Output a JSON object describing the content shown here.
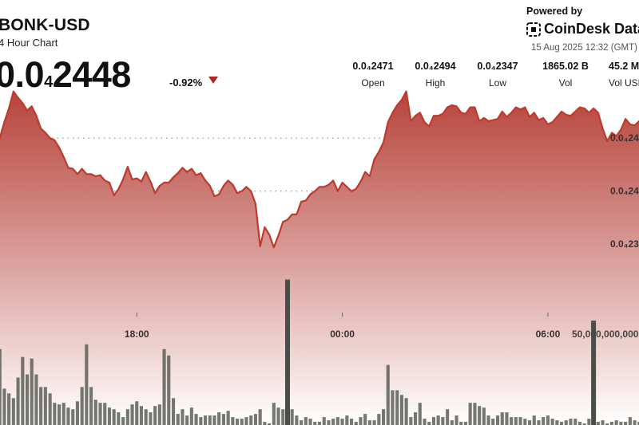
{
  "header": {
    "pair": "BONK-USD",
    "period": "4 Hour Chart",
    "price_lead": "0.0",
    "price_sub": "4",
    "price_tail": "2448",
    "change": "-0.92%",
    "down_color": "#b3261e"
  },
  "branding": {
    "powered_by": "Powered by",
    "name": "CoinDesk Data",
    "timestamp": "15 Aug 2025 12:32 (GMT)"
  },
  "stats": [
    {
      "value": "0.0₄2471",
      "label": "Open"
    },
    {
      "value": "0.0₄2494",
      "label": "High"
    },
    {
      "value": "0.0₄2347",
      "label": "Low"
    },
    {
      "value": "1865.02 B",
      "label": "Vol"
    },
    {
      "value": "45.2 M",
      "label": "Vol USD"
    }
  ],
  "chart_data": {
    "type": "area",
    "price_axis_labels": [
      {
        "value": 2.45e-05,
        "text": "0.0₄24"
      },
      {
        "value": 2.4e-05,
        "text": "0.0₄24"
      },
      {
        "value": 2.35e-05,
        "text": "0.0₄23"
      }
    ],
    "volume_axis_label": {
      "value": 50000000000,
      "text": "50,000,000,000"
    },
    "time_ticks": [
      {
        "index": 31,
        "text": "18:00"
      },
      {
        "index": 76,
        "text": "00:00"
      },
      {
        "index": 121,
        "text": "06:00"
      }
    ],
    "ylim_price": [
      2.296e-05,
      2.499e-05
    ],
    "ylim_volume": [
      0,
      58000000000
    ],
    "price": [
      2.447e-05,
      2.45e-05,
      2.465e-05,
      2.478e-05,
      2.494e-05,
      2.488e-05,
      2.483e-05,
      2.476e-05,
      2.48e-05,
      2.471e-05,
      2.459e-05,
      2.455e-05,
      2.45e-05,
      2.448e-05,
      2.441e-05,
      2.432e-05,
      2.422e-05,
      2.421e-05,
      2.416e-05,
      2.421e-05,
      2.416e-05,
      2.416e-05,
      2.414e-05,
      2.415e-05,
      2.41e-05,
      2.408e-05,
      2.396e-05,
      2.402e-05,
      2.411e-05,
      2.423e-05,
      2.411e-05,
      2.412e-05,
      2.409e-05,
      2.418e-05,
      2.409e-05,
      2.398e-05,
      2.405e-05,
      2.408e-05,
      2.408e-05,
      2.413e-05,
      2.417e-05,
      2.422e-05,
      2.418e-05,
      2.421e-05,
      2.415e-05,
      2.417e-05,
      2.41e-05,
      2.405e-05,
      2.395e-05,
      2.397e-05,
      2.405e-05,
      2.41e-05,
      2.406e-05,
      2.398e-05,
      2.4e-05,
      2.404e-05,
      2.4e-05,
      2.388e-05,
      2.348e-05,
      2.366e-05,
      2.359e-05,
      2.347e-05,
      2.358e-05,
      2.371e-05,
      2.373e-05,
      2.378e-05,
      2.378e-05,
      2.39e-05,
      2.391e-05,
      2.397e-05,
      2.4e-05,
      2.404e-05,
      2.404e-05,
      2.406e-05,
      2.41e-05,
      2.4e-05,
      2.408e-05,
      2.404e-05,
      2.4e-05,
      2.402e-05,
      2.409e-05,
      2.418e-05,
      2.414e-05,
      2.43e-05,
      2.437e-05,
      2.446e-05,
      2.465e-05,
      2.474e-05,
      2.481e-05,
      2.486e-05,
      2.494e-05,
      2.466e-05,
      2.471e-05,
      2.474e-05,
      2.465e-05,
      2.461e-05,
      2.471e-05,
      2.471e-05,
      2.473e-05,
      2.479e-05,
      2.481e-05,
      2.48e-05,
      2.474e-05,
      2.473e-05,
      2.479e-05,
      2.479e-05,
      2.466e-05,
      2.469e-05,
      2.466e-05,
      2.467e-05,
      2.468e-05,
      2.475e-05,
      2.47e-05,
      2.474e-05,
      2.479e-05,
      2.477e-05,
      2.479e-05,
      2.47e-05,
      2.474e-05,
      2.467e-05,
      2.469e-05,
      2.463e-05,
      2.465e-05,
      2.47e-05,
      2.475e-05,
      2.472e-05,
      2.471e-05,
      2.475e-05,
      2.479e-05,
      2.478e-05,
      2.474e-05,
      2.478e-05,
      2.474e-05,
      2.459e-05,
      2.447e-05,
      2.455e-05,
      2.452e-05,
      2.458e-05,
      2.468e-05,
      2.463e-05,
      2.462e-05,
      2.466e-05,
      2.448e-05
    ],
    "volume": [
      55000000000,
      48000000000,
      23000000000,
      20000000000,
      17000000000,
      30000000000,
      43000000000,
      32000000000,
      42000000000,
      32000000000,
      24000000000,
      24000000000,
      20000000000,
      14000000000,
      13000000000,
      14000000000,
      11000000000,
      10000000000,
      15000000000,
      24000000000,
      51000000000,
      24000000000,
      16000000000,
      14000000000,
      14000000000,
      11000000000,
      10000000000,
      8000000000,
      5000000000,
      10000000000,
      13000000000,
      15000000000,
      12000000000,
      10000000000,
      8000000000,
      12000000000,
      13000000000,
      48000000000,
      44000000000,
      17000000000,
      7000000000,
      10000000000,
      6000000000,
      11000000000,
      7000000000,
      5000000000,
      6000000000,
      6000000000,
      6000000000,
      8000000000,
      7000000000,
      9000000000,
      5000000000,
      4000000000,
      4000000000,
      5000000000,
      6000000000,
      7000000000,
      10000000000,
      2000000000,
      1000000000,
      14000000000,
      11000000000,
      10000000000,
      7000000000,
      10000000000,
      6000000000,
      3000000000,
      5000000000,
      4000000000,
      2000000000,
      2000000000,
      5000000000,
      3000000000,
      4000000000,
      5000000000,
      4000000000,
      6000000000,
      4000000000,
      2000000000,
      5000000000,
      7000000000,
      3000000000,
      3000000000,
      7000000000,
      10000000000,
      38000000000,
      22000000000,
      22000000000,
      19000000000,
      17000000000,
      5000000000,
      8000000000,
      14000000000,
      4000000000,
      2000000000,
      5000000000,
      6000000000,
      5000000000,
      10000000000,
      3000000000,
      6000000000,
      2000000000,
      2000000000,
      14000000000,
      14000000000,
      12000000000,
      11000000000,
      6000000000,
      4000000000,
      6000000000,
      8000000000,
      8000000000,
      5000000000,
      5000000000,
      5000000000,
      4000000000,
      3000000000,
      6000000000,
      3000000000,
      5000000000,
      6000000000,
      4000000000,
      3000000000,
      2000000000,
      3000000000,
      4000000000,
      4000000000,
      2000000000,
      1000000000,
      4000000000,
      3000000000,
      2000000000,
      3000000000,
      1000000000,
      2000000000,
      3000000000,
      2000000000,
      2000000000,
      5000000000,
      3000000000,
      2000000000,
      1000000000,
      3000000000
    ],
    "volume_spikes": [
      {
        "index": 64,
        "value": 92000000000
      },
      {
        "index": 131,
        "value": 66000000000
      }
    ],
    "colors": {
      "line": "#c0392b",
      "fill_top": "#b33a32",
      "fill_bottom": "#ffffff",
      "volume": "#555a52",
      "spike": "#4a4d48"
    }
  }
}
